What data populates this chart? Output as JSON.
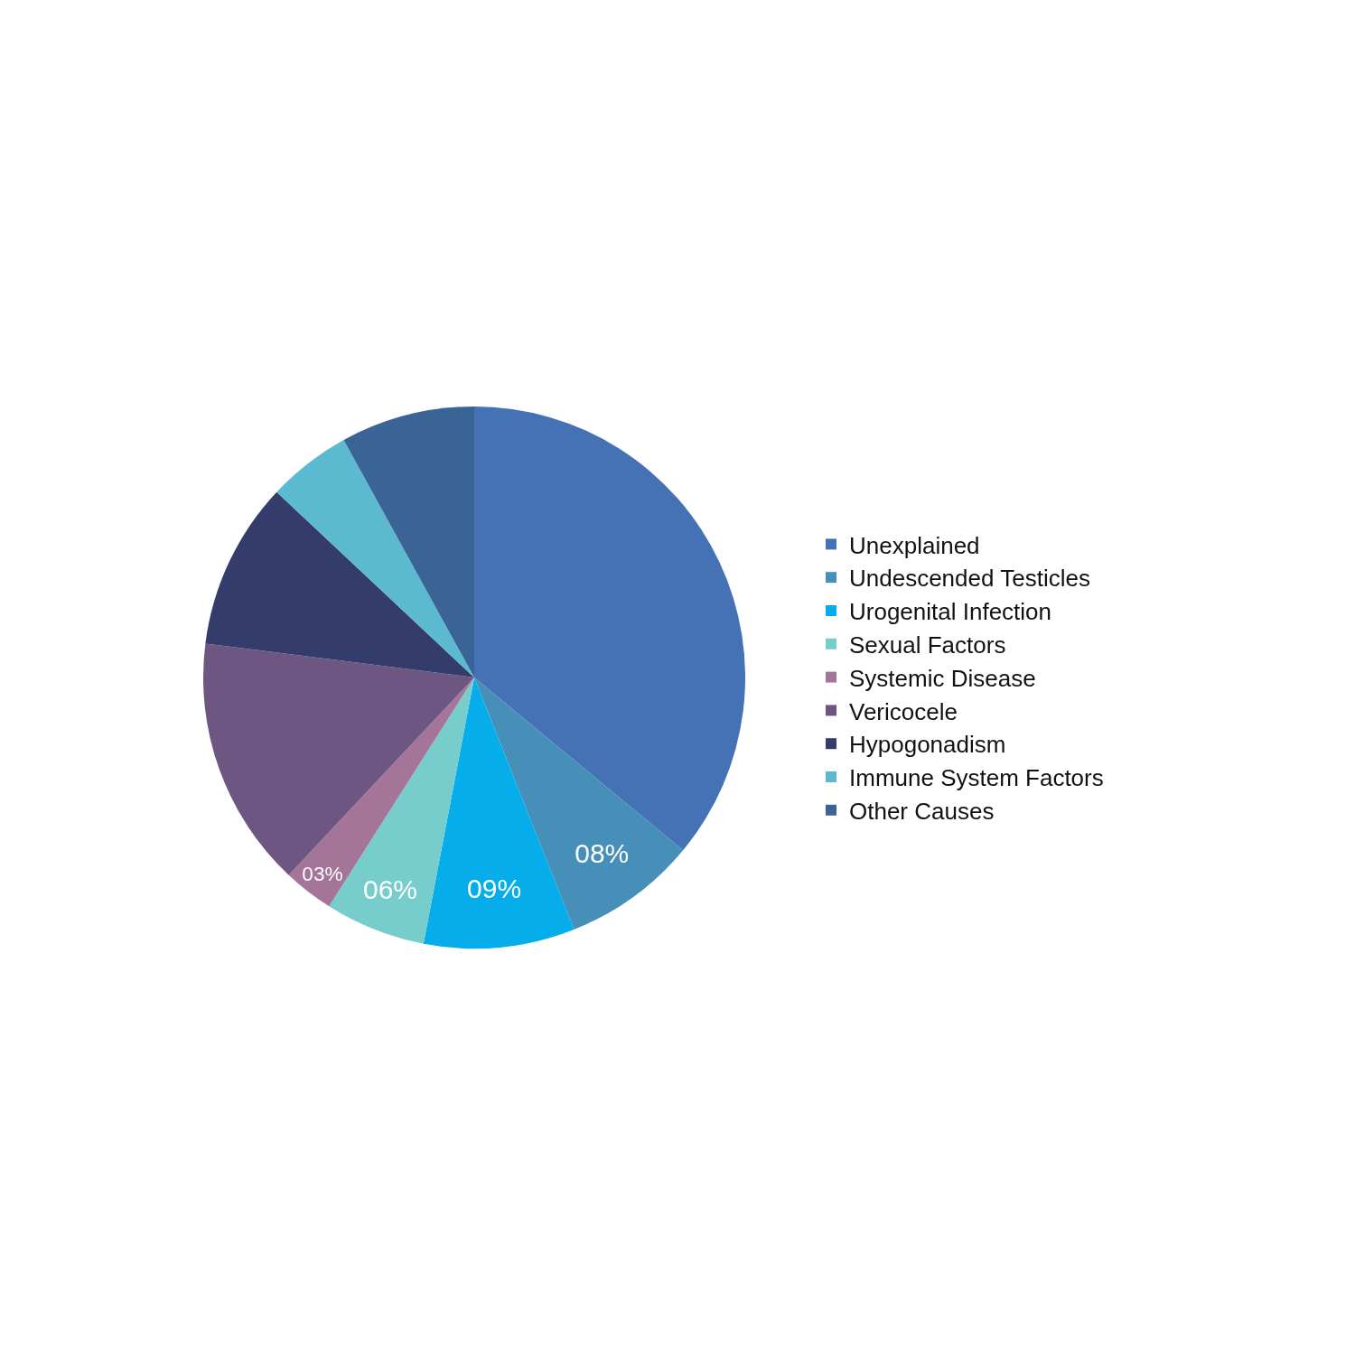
{
  "chart_data": {
    "type": "pie",
    "categories": [
      "Unexplained",
      "Undescended Testicles",
      "Urogenital Infection",
      "Sexual Factors",
      "Systemic Disease",
      "Vericocele",
      "Hypogonadism",
      "Immune System Factors",
      "Other Causes"
    ],
    "values": [
      36,
      8,
      9,
      6,
      3,
      15,
      10,
      5,
      8
    ],
    "value_labels": [
      null,
      "08%",
      "09%",
      "06%",
      "03%",
      null,
      null,
      null,
      null
    ],
    "colors": [
      "#4472b4",
      "#468fb8",
      "#05aeea",
      "#77cccc",
      "#a57599",
      "#6e5683",
      "#343c6c",
      "#5bbad0",
      "#3b6496"
    ],
    "legend": "right"
  }
}
